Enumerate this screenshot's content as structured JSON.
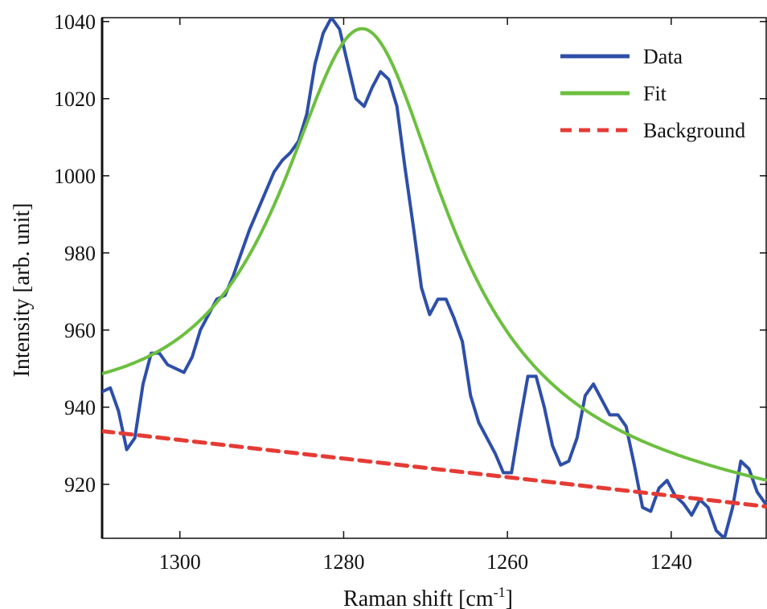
{
  "chart_data": {
    "type": "line",
    "title": "",
    "xlabel": "Raman shift [cm",
    "xlabel_sup": "-1",
    "xlabel_tail": "]",
    "ylabel": "Intensity [arb. unit]",
    "xlim": [
      1309.5,
      1228.3
    ],
    "ylim": [
      906,
      1041
    ],
    "x_reversed": true,
    "xticks": [
      1300,
      1280,
      1260,
      1240
    ],
    "yticks": [
      920,
      940,
      960,
      980,
      1000,
      1020,
      1040
    ],
    "grid": false,
    "legend_position": "top-right",
    "series": [
      {
        "name": "Data",
        "color": "#2e4fa8",
        "style": "solid",
        "x": [
          1309.5,
          1308.5,
          1307.5,
          1306.5,
          1305.5,
          1304.5,
          1303.5,
          1302.5,
          1301.5,
          1300.5,
          1299.5,
          1298.5,
          1297.5,
          1296.5,
          1295.5,
          1294.5,
          1293.5,
          1292.5,
          1291.5,
          1290.5,
          1289.5,
          1288.5,
          1287.5,
          1286.5,
          1285.5,
          1284.5,
          1283.5,
          1282.5,
          1281.5,
          1280.5,
          1279.5,
          1278.5,
          1277.5,
          1276.5,
          1275.5,
          1274.5,
          1273.5,
          1272.5,
          1271.5,
          1270.5,
          1269.5,
          1268.5,
          1267.5,
          1266.5,
          1265.5,
          1264.5,
          1263.5,
          1262.5,
          1261.5,
          1260.5,
          1259.5,
          1258.5,
          1257.5,
          1256.5,
          1255.5,
          1254.5,
          1253.5,
          1252.5,
          1251.5,
          1250.5,
          1249.5,
          1248.5,
          1247.5,
          1246.5,
          1245.5,
          1244.5,
          1243.5,
          1242.5,
          1241.5,
          1240.5,
          1239.5,
          1238.5,
          1237.5,
          1236.5,
          1235.5,
          1234.5,
          1233.5,
          1232.5,
          1231.5,
          1230.5,
          1229.5,
          1228.5
        ],
        "values": [
          944,
          945,
          939,
          929,
          932,
          946,
          954,
          954,
          951,
          950,
          949,
          953,
          960,
          964,
          968,
          969,
          974,
          980,
          986,
          991,
          996,
          1001,
          1004,
          1006,
          1009,
          1016,
          1029,
          1037,
          1041,
          1038,
          1029,
          1020,
          1018,
          1023,
          1027,
          1025,
          1018,
          1002,
          987,
          971,
          964,
          968,
          968,
          963,
          957,
          943,
          936,
          932,
          928,
          923,
          923,
          936,
          948,
          948,
          940,
          930,
          925,
          926,
          932,
          943,
          946,
          942,
          938,
          938,
          935,
          925,
          914,
          913,
          919,
          921,
          917,
          915,
          912,
          916,
          914,
          908,
          906,
          914,
          926,
          924,
          918,
          915
        ]
      },
      {
        "name": "Fit",
        "color": "#6cbf3f",
        "style": "solid",
        "model": {
          "kind": "lorentzian_on_linear",
          "center": 1277.6,
          "hwhm": 12.5,
          "amplitude": 112,
          "bg_at_1309": 933.8,
          "bg_slope_per_cm": -0.2406
        }
      },
      {
        "name": "Background",
        "color": "#e53b35",
        "style": "dashed",
        "x": [
          1309.5,
          1228.3
        ],
        "values": [
          933.8,
          914.2
        ]
      }
    ]
  }
}
